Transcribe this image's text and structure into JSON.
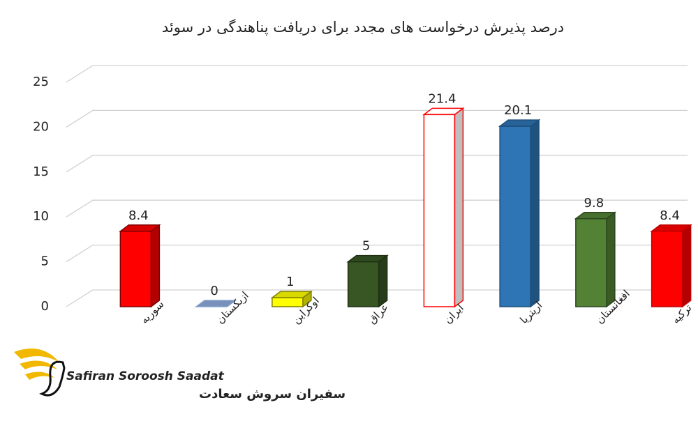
{
  "chart_data": {
    "type": "bar3d",
    "title": "درصد پذیرش درخواست های مجدد برای دریافت پناهندگی در سوئد",
    "categories": [
      "سوریه",
      "ازبکستان",
      "اوکراین",
      "عراق",
      "ایران",
      "اریتریا",
      "افغانستان",
      "ترکیه"
    ],
    "values": [
      8.4,
      0,
      1,
      5,
      21.4,
      20.1,
      9.8,
      8.4
    ],
    "colors": [
      "#ff0000",
      "#8eaadb",
      "#ffff00",
      "#375623",
      "#ffffff",
      "#2e75b6",
      "#548235",
      "#ff0000"
    ],
    "outline_colors": [
      "#7f0000",
      "#7f9fc8",
      "#7f7f00",
      "#1e2f13",
      "#ff0000",
      "#1f4e79",
      "#2c4620",
      "#c00000"
    ],
    "ylim": [
      0,
      25
    ],
    "yticks": [
      0,
      5,
      10,
      15,
      20,
      25
    ],
    "grid": true
  },
  "logo": {
    "latin": "Safiran Soroosh Saadat",
    "persian": "سفیران سروش سعادت"
  }
}
